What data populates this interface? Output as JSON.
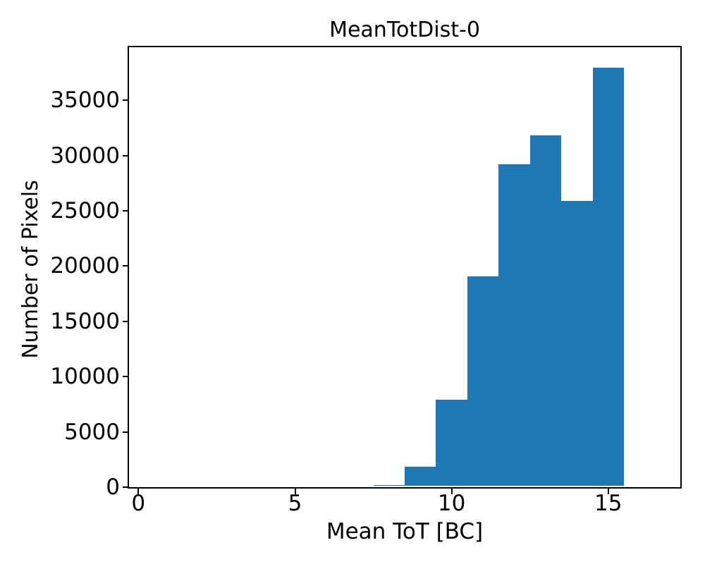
{
  "chart_data": {
    "type": "bar",
    "subtype": "histogram",
    "title": "MeanTotDist-0",
    "xlabel": "Mean ToT [BC]",
    "ylabel": "Number of Pixels",
    "bar_color": "#1f77b4",
    "background_color": "#ffffff",
    "text_color": "#000000",
    "bin_edges": [
      7.5,
      8.5,
      9.5,
      10.5,
      11.5,
      12.5,
      13.5,
      14.5,
      15.5
    ],
    "counts": [
      175,
      1850,
      7900,
      19100,
      29200,
      31800,
      25900,
      37980
    ],
    "xlim": [
      -0.3,
      17.3
    ],
    "ylim": [
      0,
      39800
    ],
    "x_ticks": [
      0,
      5,
      10,
      15
    ],
    "x_tick_labels": [
      "0",
      "5",
      "10",
      "15"
    ],
    "y_ticks": [
      0,
      5000,
      10000,
      15000,
      20000,
      25000,
      30000,
      35000
    ],
    "y_tick_labels": [
      "0",
      "5000",
      "10000",
      "15000",
      "20000",
      "25000",
      "30000",
      "35000"
    ],
    "grid": false,
    "legend": null
  }
}
